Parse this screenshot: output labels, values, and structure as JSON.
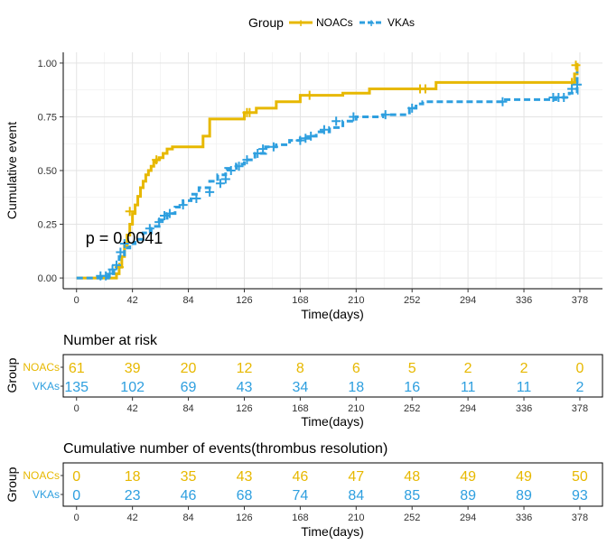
{
  "legend": {
    "title": "Group",
    "items": [
      {
        "label": "NOACs",
        "color": "#E7B800"
      },
      {
        "label": "VKAs",
        "color": "#2E9FDF"
      }
    ]
  },
  "chart_data": [
    {
      "type": "line",
      "subtype": "step",
      "title": "",
      "xlabel": "Time(days)",
      "ylabel": "Cumulative event",
      "xlim": [
        -10,
        395
      ],
      "ylim": [
        -0.05,
        1.05
      ],
      "x_ticks": [
        0,
        42,
        84,
        126,
        168,
        210,
        252,
        294,
        336,
        378
      ],
      "y_ticks": [
        0.0,
        0.25,
        0.5,
        0.75,
        1.0
      ],
      "y_tick_labels": [
        "0.00",
        "0.25",
        "0.50",
        "0.75",
        "1.00"
      ],
      "grid": true,
      "legend_position": "top",
      "annotation": "p = 0.0041",
      "annotation_at": {
        "x": 0,
        "y": 0.19
      },
      "series": [
        {
          "name": "NOACs",
          "color": "#E7B800",
          "dashed": false,
          "x": [
            0,
            25,
            30,
            32,
            34,
            36,
            38,
            40,
            42,
            44,
            46,
            48,
            50,
            52,
            54,
            56,
            58,
            60,
            62,
            65,
            68,
            72,
            75,
            80,
            95,
            100,
            126,
            135,
            150,
            168,
            185,
            200,
            220,
            235,
            260,
            270,
            300,
            330,
            360,
            370,
            374,
            376
          ],
          "y": [
            0,
            0,
            0.02,
            0.05,
            0.1,
            0.15,
            0.2,
            0.25,
            0.3,
            0.34,
            0.38,
            0.42,
            0.45,
            0.48,
            0.5,
            0.52,
            0.54,
            0.55,
            0.56,
            0.58,
            0.6,
            0.61,
            0.61,
            0.61,
            0.66,
            0.74,
            0.77,
            0.79,
            0.82,
            0.85,
            0.85,
            0.86,
            0.88,
            0.88,
            0.88,
            0.91,
            0.91,
            0.91,
            0.91,
            0.91,
            0.95,
            1.0
          ],
          "censored_x": [
            32,
            40,
            60,
            128,
            130,
            175,
            258,
            262,
            372,
            375
          ],
          "censored_y": [
            0.05,
            0.31,
            0.55,
            0.77,
            0.77,
            0.85,
            0.88,
            0.88,
            0.91,
            0.99
          ]
        },
        {
          "name": "VKAs",
          "color": "#2E9FDF",
          "dashed": true,
          "x": [
            0,
            20,
            24,
            28,
            32,
            36,
            40,
            44,
            50,
            56,
            62,
            68,
            74,
            80,
            86,
            92,
            100,
            106,
            112,
            120,
            126,
            134,
            142,
            150,
            160,
            168,
            175,
            180,
            190,
            200,
            210,
            230,
            250,
            255,
            260,
            270,
            290,
            320,
            340,
            360,
            370,
            376
          ],
          "y": [
            0,
            0,
            0.02,
            0.05,
            0.1,
            0.14,
            0.16,
            0.18,
            0.21,
            0.24,
            0.27,
            0.3,
            0.33,
            0.36,
            0.39,
            0.42,
            0.45,
            0.48,
            0.51,
            0.53,
            0.55,
            0.58,
            0.61,
            0.62,
            0.64,
            0.65,
            0.66,
            0.68,
            0.7,
            0.73,
            0.75,
            0.76,
            0.79,
            0.81,
            0.82,
            0.82,
            0.82,
            0.83,
            0.83,
            0.84,
            0.86,
            0.96
          ],
          "censored_x": [
            18,
            22,
            25,
            27,
            30,
            33,
            36,
            55,
            62,
            66,
            70,
            80,
            90,
            100,
            108,
            112,
            116,
            122,
            128,
            136,
            140,
            148,
            168,
            172,
            176,
            186,
            195,
            208,
            232,
            252,
            320,
            358,
            362,
            366,
            372,
            376
          ],
          "censored_y": [
            0.01,
            0.01,
            0.02,
            0.04,
            0.06,
            0.12,
            0.16,
            0.23,
            0.26,
            0.29,
            0.3,
            0.34,
            0.37,
            0.4,
            0.44,
            0.46,
            0.5,
            0.52,
            0.55,
            0.58,
            0.6,
            0.61,
            0.64,
            0.65,
            0.66,
            0.69,
            0.73,
            0.75,
            0.76,
            0.79,
            0.82,
            0.84,
            0.84,
            0.84,
            0.88,
            0.9
          ]
        }
      ]
    },
    {
      "type": "table",
      "title": "Number at risk",
      "ylabel": "Group",
      "xlabel": "Time(days)",
      "columns": [
        0,
        42,
        84,
        126,
        168,
        210,
        252,
        294,
        336,
        378
      ],
      "rows": [
        {
          "group": "NOACs",
          "color": "#E7B800",
          "values": [
            61,
            39,
            20,
            12,
            8,
            6,
            5,
            2,
            2,
            0
          ]
        },
        {
          "group": "VKAs",
          "color": "#2E9FDF",
          "values": [
            135,
            102,
            69,
            43,
            34,
            18,
            16,
            11,
            11,
            2
          ]
        }
      ]
    },
    {
      "type": "table",
      "title": "Cumulative number of events(thrombus resolution)",
      "ylabel": "Group",
      "xlabel": "Time(days)",
      "columns": [
        0,
        42,
        84,
        126,
        168,
        210,
        252,
        294,
        336,
        378
      ],
      "rows": [
        {
          "group": "NOACs",
          "color": "#E7B800",
          "values": [
            0,
            18,
            35,
            43,
            46,
            47,
            48,
            49,
            49,
            50
          ]
        },
        {
          "group": "VKAs",
          "color": "#2E9FDF",
          "values": [
            0,
            23,
            46,
            68,
            74,
            84,
            85,
            89,
            89,
            93
          ]
        }
      ]
    }
  ]
}
